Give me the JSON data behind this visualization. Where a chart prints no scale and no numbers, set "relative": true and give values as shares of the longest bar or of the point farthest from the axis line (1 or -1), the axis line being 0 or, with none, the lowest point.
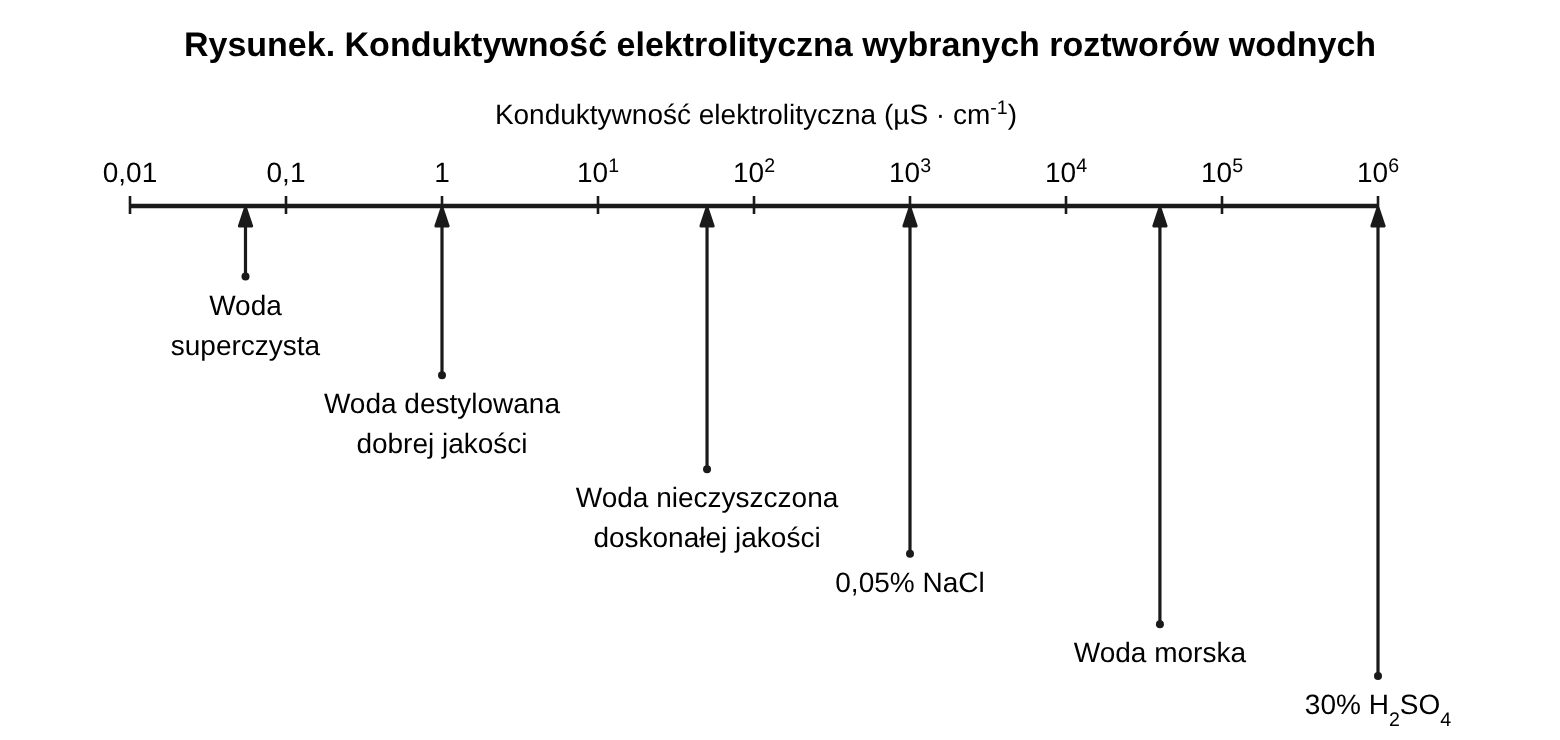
{
  "chart_data": {
    "type": "lollipop",
    "title": "Rysunek. Konduktywność elektrolityczna wybranych roztworów wodnych",
    "xlabel": "Konduktywność elektrolityczna (µS · cm$^{-1}$)",
    "log": "x",
    "relative": true,
    "x": [
      0.055,
      1,
      50,
      1000,
      40000,
      1000000
    ],
    "values": [
      -0.15,
      -0.36,
      -0.56,
      -0.74,
      -0.89,
      -1
    ],
    "color": "#1a1a1a",
    "xlim": [
      0.01,
      1000000
    ],
    "xticks": [
      {
        "value": 0.01,
        "label": "0,01"
      },
      {
        "value": 0.1,
        "label": "0,1"
      },
      1,
      {
        "value": 10,
        "label": "10$^{1}$"
      },
      {
        "value": 100,
        "label": "10$^{2}$"
      },
      {
        "value": 1000,
        "label": "10$^{3}$"
      },
      {
        "value": 10000,
        "label": "10$^{4}$"
      },
      {
        "value": 100000,
        "label": "10$^{5}$"
      },
      {
        "value": 1000000,
        "label": "10$^{6}$"
      }
    ],
    "annotations": [
      {
        "text": "Woda\nsuperczysta",
        "x": 0.055,
        "y": -0.15
      },
      {
        "text": "Woda destylowana\ndobrej jakości",
        "x": 1,
        "y": -0.36
      },
      {
        "text": "Woda nieczyszczona\ndoskonałej jakości",
        "x": 50,
        "y": -0.56
      },
      {
        "text": "0,05% NaCl",
        "x": 1000,
        "y": -0.74
      },
      {
        "text": "Woda morska",
        "x": 40000,
        "y": -0.89
      },
      {
        "text": "30% H$_{2}$SO$_{4}$",
        "x": 1000000,
        "y": -1
      }
    ]
  }
}
